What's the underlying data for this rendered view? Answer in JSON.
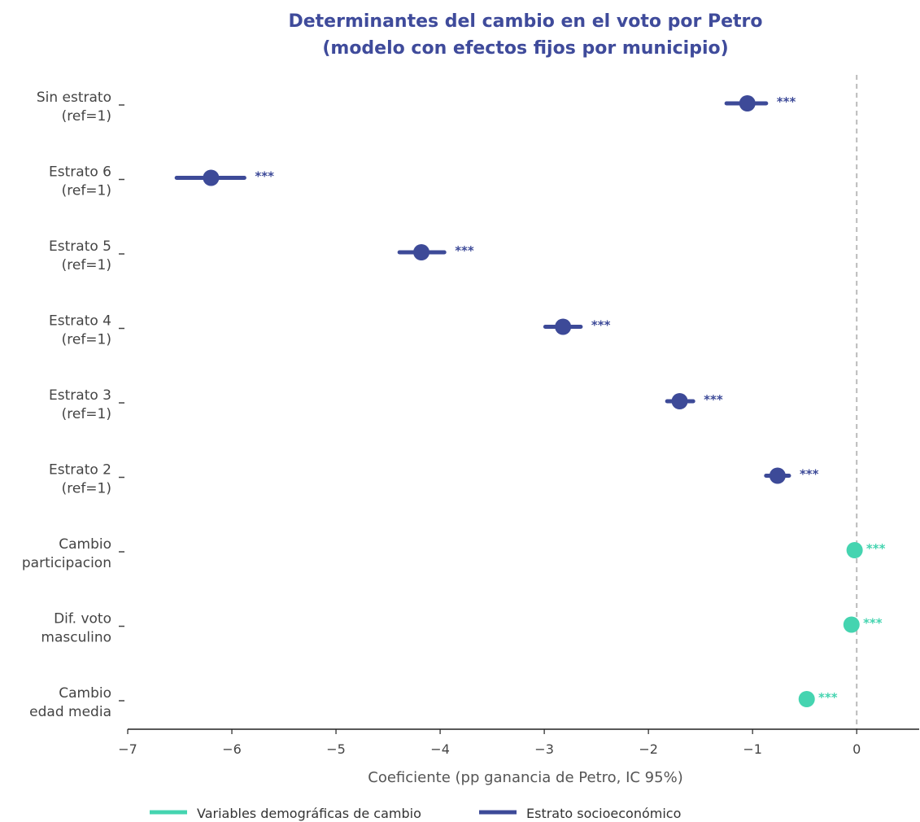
{
  "colors": {
    "demographic": "#45d4b0",
    "estrato": "#3d4a98",
    "title": "#3f4b9b",
    "zero_line": "#bbbbbb",
    "axis": "#222222"
  },
  "chart_data": {
    "type": "scatter",
    "subtype": "coefficient-plot",
    "title": [
      "Determinantes del cambio en el voto por Petro",
      "(modelo con efectos fijos por municipio)"
    ],
    "xlabel": "Coeficiente (pp ganancia de Petro, IC 95%)",
    "xlim": [
      -7,
      0.6
    ],
    "xticks": [
      -7,
      -6,
      -5,
      -4,
      -3,
      -2,
      -1,
      0
    ],
    "xtick_labels": [
      "−7",
      "−6",
      "−5",
      "−4",
      "−3",
      "−2",
      "−1",
      "0"
    ],
    "reference_line": 0,
    "legend": {
      "placement": "bottom",
      "entries": [
        {
          "label": "Variables demográficas de cambio",
          "group": "demographic"
        },
        {
          "label": "Estrato socioeconómico",
          "group": "estrato"
        }
      ]
    },
    "points": [
      {
        "label": [
          "Sin estrato",
          "(ref=1)"
        ],
        "group": "estrato",
        "estimate": -1.05,
        "ci": [
          -1.25,
          -0.87
        ],
        "sig": "***"
      },
      {
        "label": [
          "Estrato 6",
          "(ref=1)"
        ],
        "group": "estrato",
        "estimate": -6.2,
        "ci": [
          -6.53,
          -5.88
        ],
        "sig": "***"
      },
      {
        "label": [
          "Estrato 5",
          "(ref=1)"
        ],
        "group": "estrato",
        "estimate": -4.18,
        "ci": [
          -4.39,
          -3.96
        ],
        "sig": "***"
      },
      {
        "label": [
          "Estrato 4",
          "(ref=1)"
        ],
        "group": "estrato",
        "estimate": -2.82,
        "ci": [
          -2.99,
          -2.65
        ],
        "sig": "***"
      },
      {
        "label": [
          "Estrato 3",
          "(ref=1)"
        ],
        "group": "estrato",
        "estimate": -1.7,
        "ci": [
          -1.82,
          -1.57
        ],
        "sig": "***"
      },
      {
        "label": [
          "Estrato 2",
          "(ref=1)"
        ],
        "group": "estrato",
        "estimate": -0.76,
        "ci": [
          -0.87,
          -0.65
        ],
        "sig": "***"
      },
      {
        "label": [
          "Cambio",
          "participacion"
        ],
        "group": "demographic",
        "estimate": -0.02,
        "ci": [
          -0.03,
          -0.01
        ],
        "sig": "***"
      },
      {
        "label": [
          "Dif. voto",
          "masculino"
        ],
        "group": "demographic",
        "estimate": -0.05,
        "ci": [
          -0.06,
          -0.04
        ],
        "sig": "***"
      },
      {
        "label": [
          "Cambio",
          "edad media"
        ],
        "group": "demographic",
        "estimate": -0.48,
        "ci": [
          -0.49,
          -0.47
        ],
        "sig": "***"
      }
    ]
  }
}
